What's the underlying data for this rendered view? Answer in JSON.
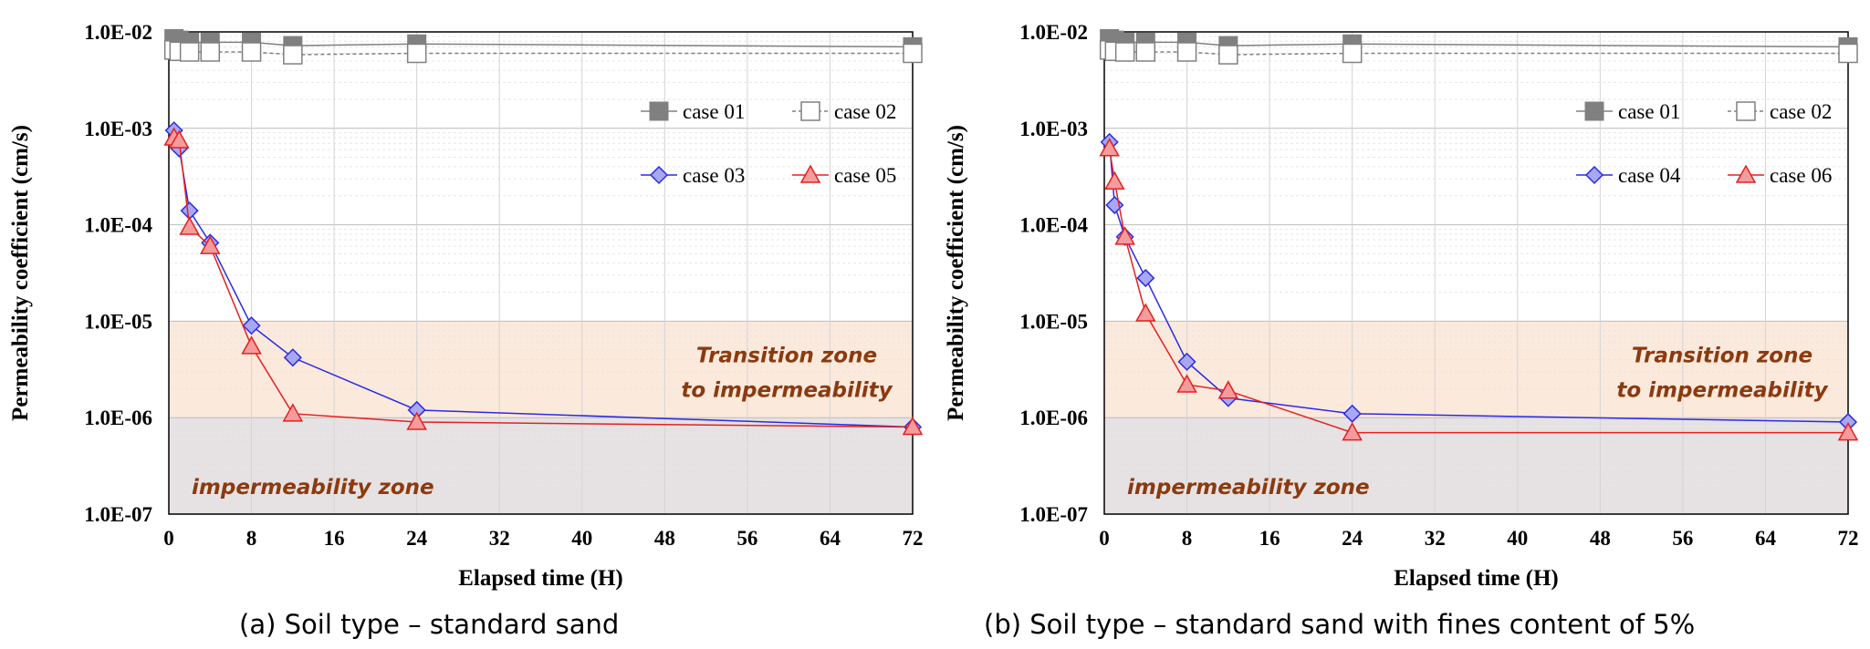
{
  "chart_data": [
    {
      "type": "line",
      "caption": "(a) Soil type – standard sand",
      "xlabel": "Elapsed time (H)",
      "ylabel": "Permeability coefficient (cm/s)",
      "xlim": [
        0,
        72
      ],
      "xticks": [
        0,
        8,
        16,
        24,
        32,
        40,
        48,
        56,
        64,
        72
      ],
      "ylim": [
        1e-07,
        0.01
      ],
      "yscale": "log",
      "yticks": [
        1e-07,
        1e-06,
        1e-05,
        0.0001,
        0.001,
        0.01
      ],
      "ytick_labels": [
        "1.0E-07",
        "1.0E-06",
        "1.0E-05",
        "1.0E-04",
        "1.0E-03",
        "1.0E-02"
      ],
      "grid": true,
      "legend_position": "right",
      "zones": [
        {
          "label_lines": [
            "Transition zone",
            "to impermeability"
          ],
          "range": [
            1e-06,
            1e-05
          ],
          "color": "#fbe9dc"
        },
        {
          "label_lines": [
            "impermeability zone"
          ],
          "range": [
            1e-07,
            1e-06
          ],
          "color": "#e6e2e3"
        }
      ],
      "series": [
        {
          "name": "case 01",
          "color": "#808080",
          "marker": "square-filled",
          "x": [
            0.5,
            1,
            2,
            4,
            8,
            12,
            24,
            72
          ],
          "y": [
            0.0085,
            0.0082,
            0.0078,
            0.0078,
            0.0078,
            0.0072,
            0.0075,
            0.007
          ]
        },
        {
          "name": "case 02",
          "color": "#808080",
          "marker": "square-open",
          "dashed": true,
          "x": [
            0.5,
            1,
            2,
            4,
            8,
            12,
            24,
            72
          ],
          "y": [
            0.0065,
            0.0063,
            0.0062,
            0.0062,
            0.0062,
            0.0058,
            0.006,
            0.006
          ]
        },
        {
          "name": "case 03",
          "color": "#2a2ae6",
          "marker": "diamond",
          "x": [
            0.5,
            1,
            2,
            4,
            8,
            12,
            24,
            72
          ],
          "y": [
            0.00095,
            0.00062,
            0.00014,
            6.5e-05,
            9e-06,
            4.2e-06,
            1.2e-06,
            8e-07
          ]
        },
        {
          "name": "case 05",
          "color": "#e62020",
          "marker": "triangle",
          "x": [
            0.5,
            1,
            2,
            4,
            8,
            12,
            24,
            72
          ],
          "y": [
            0.0008,
            0.00075,
            9.5e-05,
            6e-05,
            5.5e-06,
            1.1e-06,
            9e-07,
            8e-07
          ]
        }
      ]
    },
    {
      "type": "line",
      "caption": "(b) Soil type – standard sand with fines content of 5%",
      "xlabel": "Elapsed time (H)",
      "ylabel": "Permeability coefficient (cm/s)",
      "xlim": [
        0,
        72
      ],
      "xticks": [
        0,
        8,
        16,
        24,
        32,
        40,
        48,
        56,
        64,
        72
      ],
      "ylim": [
        1e-07,
        0.01
      ],
      "yscale": "log",
      "yticks": [
        1e-07,
        1e-06,
        1e-05,
        0.0001,
        0.001,
        0.01
      ],
      "ytick_labels": [
        "1.0E-07",
        "1.0E-06",
        "1.0E-05",
        "1.0E-04",
        "1.0E-03",
        "1.0E-02"
      ],
      "grid": true,
      "legend_position": "right",
      "zones": [
        {
          "label_lines": [
            "Transition zone",
            "to impermeability"
          ],
          "range": [
            1e-06,
            1e-05
          ],
          "color": "#fbe9dc"
        },
        {
          "label_lines": [
            "impermeability zone"
          ],
          "range": [
            1e-07,
            1e-06
          ],
          "color": "#e6e2e3"
        }
      ],
      "series": [
        {
          "name": "case 01",
          "color": "#808080",
          "marker": "square-filled",
          "x": [
            0.5,
            1,
            2,
            4,
            8,
            12,
            24,
            72
          ],
          "y": [
            0.0085,
            0.0082,
            0.0078,
            0.0078,
            0.0078,
            0.0072,
            0.0075,
            0.007
          ]
        },
        {
          "name": "case 02",
          "color": "#808080",
          "marker": "square-open",
          "dashed": true,
          "x": [
            0.5,
            1,
            2,
            4,
            8,
            12,
            24,
            72
          ],
          "y": [
            0.0065,
            0.0063,
            0.0062,
            0.0062,
            0.0062,
            0.0058,
            0.006,
            0.006
          ]
        },
        {
          "name": "case 04",
          "color": "#2a2ae6",
          "marker": "diamond",
          "x": [
            0.5,
            1,
            2,
            4,
            8,
            12,
            24,
            72
          ],
          "y": [
            0.00072,
            0.00016,
            7.5e-05,
            2.8e-05,
            3.8e-06,
            1.6e-06,
            1.1e-06,
            9e-07
          ]
        },
        {
          "name": "case 06",
          "color": "#e62020",
          "marker": "triangle",
          "x": [
            0.5,
            1,
            2,
            4,
            8,
            12,
            24,
            72
          ],
          "y": [
            0.00062,
            0.00028,
            7.5e-05,
            1.2e-05,
            2.2e-06,
            1.9e-06,
            7e-07,
            7e-07
          ]
        }
      ]
    }
  ]
}
